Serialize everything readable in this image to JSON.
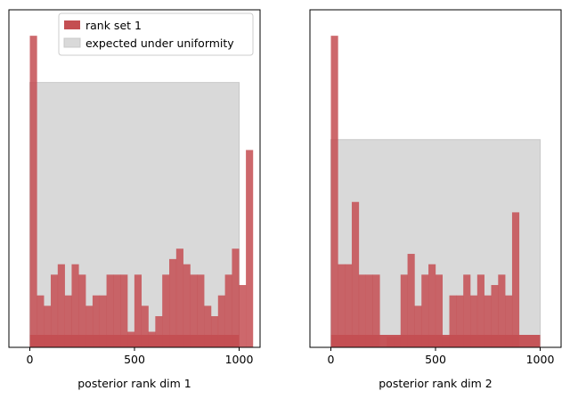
{
  "chart_data": [
    {
      "type": "bar",
      "subtype": "histogram",
      "xlabel": "posterior rank dim 1",
      "ylabel": "",
      "xticks": [
        0,
        500,
        1000
      ],
      "xlim": [
        -100,
        1100
      ],
      "ylim": [
        0,
        65
      ],
      "bin_width": 33.3,
      "bin_edges_start": 0,
      "series": [
        {
          "name": "rank set 1",
          "color": "#c44e52",
          "values": [
            60,
            10,
            8,
            14,
            16,
            10,
            16,
            14,
            8,
            10,
            10,
            14,
            14,
            14,
            3,
            14,
            8,
            3,
            6,
            14,
            17,
            19,
            16,
            14,
            14,
            8,
            6,
            10,
            14,
            19,
            12,
            38
          ]
        }
      ],
      "band": {
        "name": "expected under uniformity",
        "color": "#d9d9d9",
        "lower": 0,
        "upper": 51,
        "x_range": [
          0,
          1000
        ]
      },
      "legend": {
        "position": "top-right",
        "entries": [
          "rank set 1",
          "expected under uniformity"
        ]
      },
      "grid": false
    },
    {
      "type": "bar",
      "subtype": "histogram",
      "xlabel": "posterior rank dim 2",
      "ylabel": "",
      "xticks": [
        0,
        500,
        1000
      ],
      "xlim": [
        -100,
        1100
      ],
      "ylim": [
        0,
        65
      ],
      "bin_width": 33.3,
      "bin_edges_start": 0,
      "series": [
        {
          "name": "rank set 1",
          "color": "#c44e52",
          "values": [
            60,
            16,
            16,
            28,
            14,
            14,
            14,
            0,
            2,
            2,
            14,
            18,
            8,
            14,
            16,
            14,
            2,
            10,
            10,
            14,
            10,
            14,
            10,
            12,
            14,
            10,
            26
          ]
        }
      ],
      "band": {
        "name": "expected under uniformity",
        "color": "#d9d9d9",
        "lower": 0,
        "upper": 40,
        "x_range": [
          0,
          1000
        ]
      },
      "grid": false
    }
  ]
}
